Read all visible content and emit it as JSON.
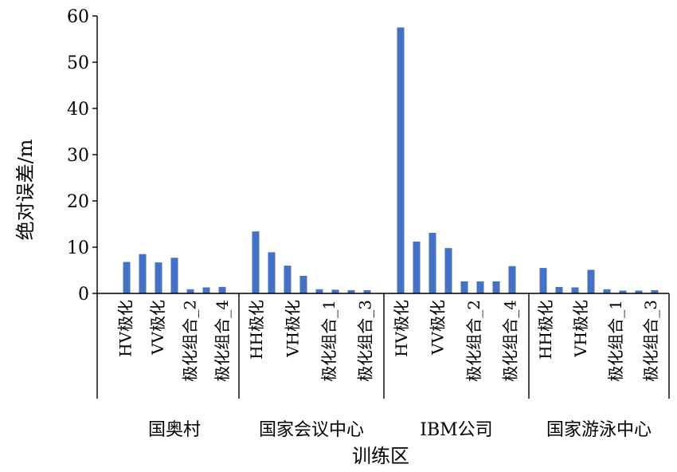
{
  "chart_data": {
    "type": "bar",
    "xlabel": "训练区",
    "ylabel": "绝对误差/m",
    "ylim": [
      0,
      60
    ],
    "yticks": [
      0,
      10,
      20,
      30,
      40,
      50,
      60
    ],
    "grid": false,
    "bar_color": "#4472C4",
    "groups": [
      {
        "name": "国奥村",
        "categories": [
          "HV极化",
          "VV极化",
          "极化组合_2",
          "极化组合_4"
        ],
        "bars": [
          {
            "category": "HV极化",
            "value": 6.8
          },
          {
            "category": "HV极化",
            "value": 8.5
          },
          {
            "category": "VV极化",
            "value": 6.7
          },
          {
            "category": "VV极化",
            "value": 7.7
          },
          {
            "category": "极化组合_2",
            "value": 0.9
          },
          {
            "category": "极化组合_2",
            "value": 1.3
          },
          {
            "category": "极化组合_4",
            "value": 1.4
          }
        ]
      },
      {
        "name": "国家会议中心",
        "categories": [
          "HH极化",
          "VH极化",
          "极化组合_1",
          "极化组合_3"
        ],
        "bars": [
          {
            "category": "HH极化",
            "value": 13.4
          },
          {
            "category": "HH极化",
            "value": 8.9
          },
          {
            "category": "VH极化",
            "value": 6.0
          },
          {
            "category": "VH极化",
            "value": 3.8
          },
          {
            "category": "极化组合_1",
            "value": 0.9
          },
          {
            "category": "极化组合_1",
            "value": 0.8
          },
          {
            "category": "极化组合_3",
            "value": 0.7
          },
          {
            "category": "极化组合_3",
            "value": 0.7
          }
        ]
      },
      {
        "name": "IBM公司",
        "categories": [
          "HV极化",
          "VV极化",
          "极化组合_2",
          "极化组合_4"
        ],
        "bars": [
          {
            "category": "HV极化",
            "value": 57.5
          },
          {
            "category": "HV极化",
            "value": 11.2
          },
          {
            "category": "VV极化",
            "value": 13.1
          },
          {
            "category": "VV极化",
            "value": 9.8
          },
          {
            "category": "极化组合_2",
            "value": 2.6
          },
          {
            "category": "极化组合_2",
            "value": 2.6
          },
          {
            "category": "极化组合_4",
            "value": 2.6
          },
          {
            "category": "极化组合_4",
            "value": 5.9
          }
        ]
      },
      {
        "name": "国家游泳中心",
        "categories": [
          "HH极化",
          "VH极化",
          "极化组合_1",
          "极化组合_3"
        ],
        "bars": [
          {
            "category": "HH极化",
            "value": 5.5
          },
          {
            "category": "HH极化",
            "value": 1.4
          },
          {
            "category": "VH极化",
            "value": 1.3
          },
          {
            "category": "VH极化",
            "value": 5.1
          },
          {
            "category": "极化组合_1",
            "value": 0.9
          },
          {
            "category": "极化组合_1",
            "value": 0.6
          },
          {
            "category": "极化组合_3",
            "value": 0.6
          },
          {
            "category": "极化组合_3",
            "value": 0.7
          }
        ]
      }
    ]
  }
}
